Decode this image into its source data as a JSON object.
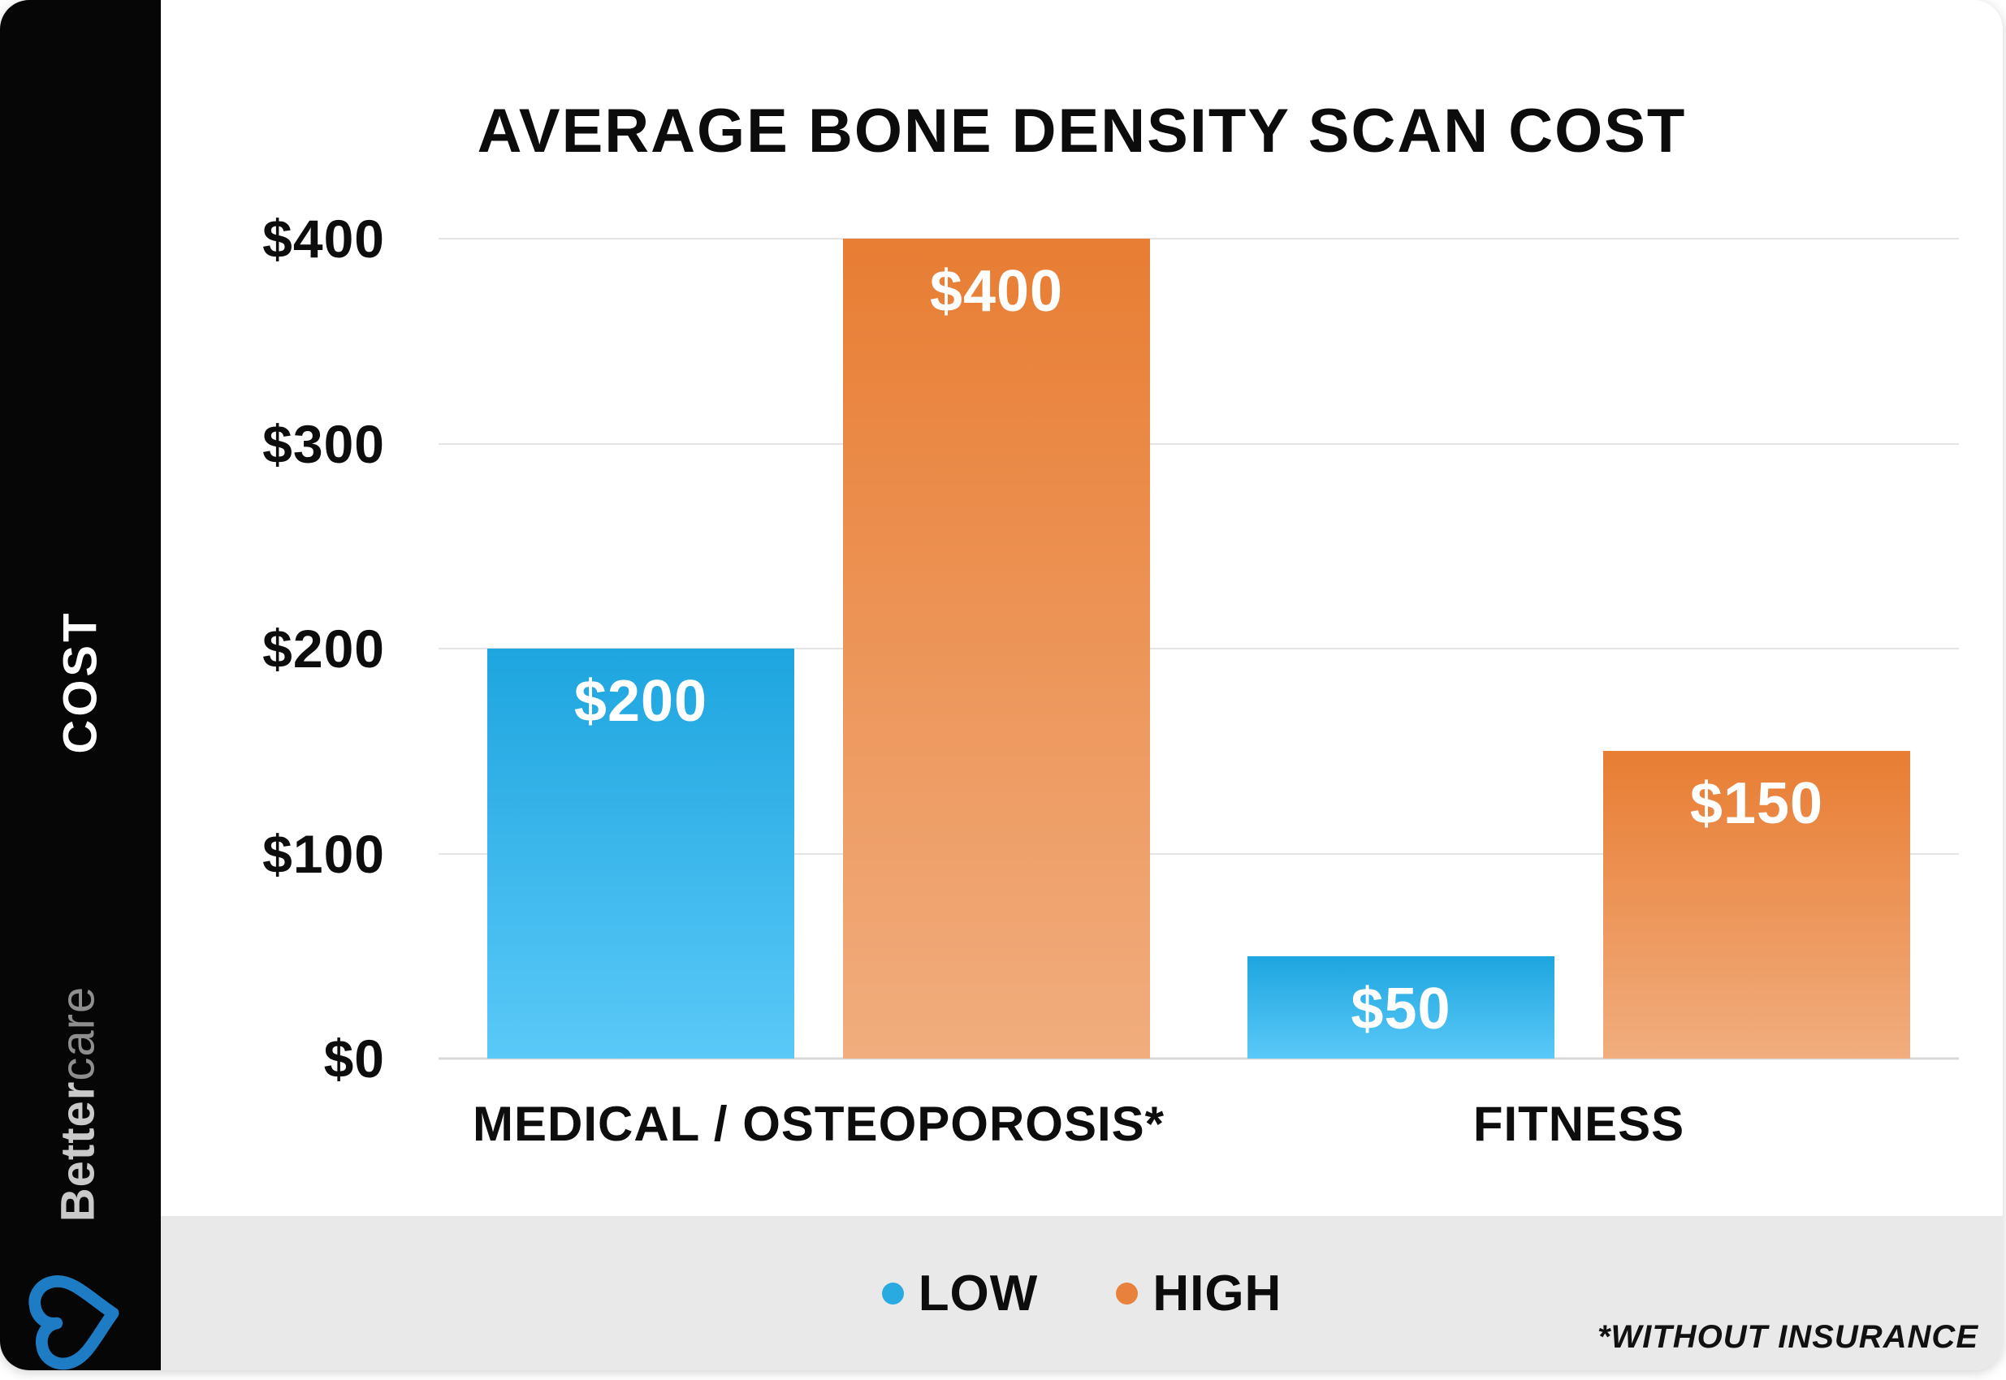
{
  "sidebar": {
    "vertical_label": "COST",
    "brand_bold": "Better",
    "brand_light": "care",
    "heart_icon_color": "#1E7CC5"
  },
  "chart_data": {
    "type": "bar",
    "title": "AVERAGE BONE DENSITY SCAN COST",
    "categories": [
      "MEDICAL / OSTEOPOROSIS*",
      "FITNESS"
    ],
    "series": [
      {
        "name": "LOW",
        "values": [
          200,
          50
        ],
        "labels": [
          "$200",
          "$50"
        ],
        "legend_color": "#29ABE2"
      },
      {
        "name": "HIGH",
        "values": [
          400,
          150
        ],
        "labels": [
          "$400",
          "$150"
        ],
        "legend_color": "#E8813C"
      }
    ],
    "ylim": [
      0,
      400
    ],
    "yticks": [
      {
        "value": 0,
        "label": "$0"
      },
      {
        "value": 100,
        "label": "$100"
      },
      {
        "value": 200,
        "label": "$200"
      },
      {
        "value": 300,
        "label": "$300"
      },
      {
        "value": 400,
        "label": "$400"
      }
    ],
    "grid": true,
    "legend_position": "bottom",
    "ylabel": "COST"
  },
  "footnote": "*WITHOUT INSURANCE"
}
